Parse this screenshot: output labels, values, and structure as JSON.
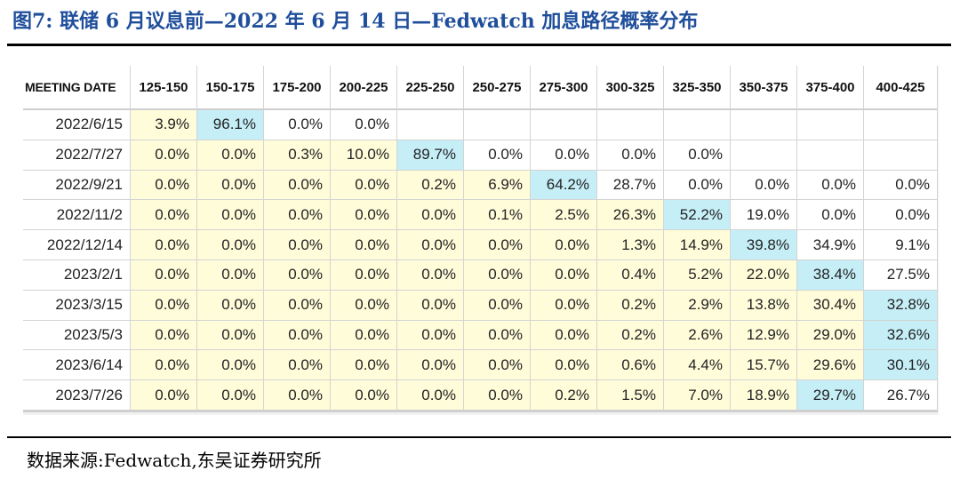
{
  "title": "图7:  联储 6 月议息前—2022 年 6 月 14 日—Fedwatch 加息路径概率分布",
  "source": "数据来源:Fedwatch,东吴证券研究所",
  "colors": {
    "title": "#1f4e9b",
    "yellow_cell": "#fefcd9",
    "blue_cell": "#c5eef7",
    "white_cell": "#ffffff"
  },
  "table": {
    "headers": [
      "MEETING DATE",
      "125-150",
      "150-175",
      "175-200",
      "200-225",
      "225-250",
      "250-275",
      "275-300",
      "300-325",
      "325-350",
      "350-375",
      "375-400",
      "400-425"
    ],
    "rows": [
      {
        "date": "2022/6/15",
        "cells": [
          "3.9%",
          "96.1%",
          "0.0%",
          "0.0%",
          "",
          "",
          "",
          "",
          "",
          "",
          "",
          ""
        ]
      },
      {
        "date": "2022/7/27",
        "cells": [
          "0.0%",
          "0.0%",
          "0.3%",
          "10.0%",
          "89.7%",
          "0.0%",
          "0.0%",
          "0.0%",
          "0.0%",
          "",
          "",
          ""
        ]
      },
      {
        "date": "2022/9/21",
        "cells": [
          "0.0%",
          "0.0%",
          "0.0%",
          "0.0%",
          "0.2%",
          "6.9%",
          "64.2%",
          "28.7%",
          "0.0%",
          "0.0%",
          "0.0%",
          "0.0%"
        ]
      },
      {
        "date": "2022/11/2",
        "cells": [
          "0.0%",
          "0.0%",
          "0.0%",
          "0.0%",
          "0.0%",
          "0.1%",
          "2.5%",
          "26.3%",
          "52.2%",
          "19.0%",
          "0.0%",
          "0.0%"
        ]
      },
      {
        "date": "2022/12/14",
        "cells": [
          "0.0%",
          "0.0%",
          "0.0%",
          "0.0%",
          "0.0%",
          "0.0%",
          "0.0%",
          "1.3%",
          "14.9%",
          "39.8%",
          "34.9%",
          "9.1%"
        ]
      },
      {
        "date": "2023/2/1",
        "cells": [
          "0.0%",
          "0.0%",
          "0.0%",
          "0.0%",
          "0.0%",
          "0.0%",
          "0.0%",
          "0.4%",
          "5.2%",
          "22.0%",
          "38.4%",
          "27.5%"
        ]
      },
      {
        "date": "2023/3/15",
        "cells": [
          "0.0%",
          "0.0%",
          "0.0%",
          "0.0%",
          "0.0%",
          "0.0%",
          "0.0%",
          "0.2%",
          "2.9%",
          "13.8%",
          "30.4%",
          "32.8%"
        ]
      },
      {
        "date": "2023/5/3",
        "cells": [
          "0.0%",
          "0.0%",
          "0.0%",
          "0.0%",
          "0.0%",
          "0.0%",
          "0.0%",
          "0.2%",
          "2.6%",
          "12.9%",
          "29.0%",
          "32.6%"
        ]
      },
      {
        "date": "2023/6/14",
        "cells": [
          "0.0%",
          "0.0%",
          "0.0%",
          "0.0%",
          "0.0%",
          "0.0%",
          "0.0%",
          "0.6%",
          "4.4%",
          "15.7%",
          "29.6%",
          "30.1%"
        ]
      },
      {
        "date": "2023/7/26",
        "cells": [
          "0.0%",
          "0.0%",
          "0.0%",
          "0.0%",
          "0.0%",
          "0.0%",
          "0.2%",
          "1.5%",
          "7.0%",
          "18.9%",
          "29.7%",
          "26.7%"
        ]
      }
    ],
    "cell_colors": [
      "ybwwxxxxxxxx",
      "yyyybwwwwxxx",
      "yyyyyybwwwww",
      "yyyyyyyybwww",
      "yyyyyyyyybww",
      "yyyyyyyyyybw",
      "yyyyyyyyyyyb",
      "yyyyyyyyyyyb",
      "yyyyyyyyyyyb",
      "yyyyyyyyyybw"
    ]
  }
}
